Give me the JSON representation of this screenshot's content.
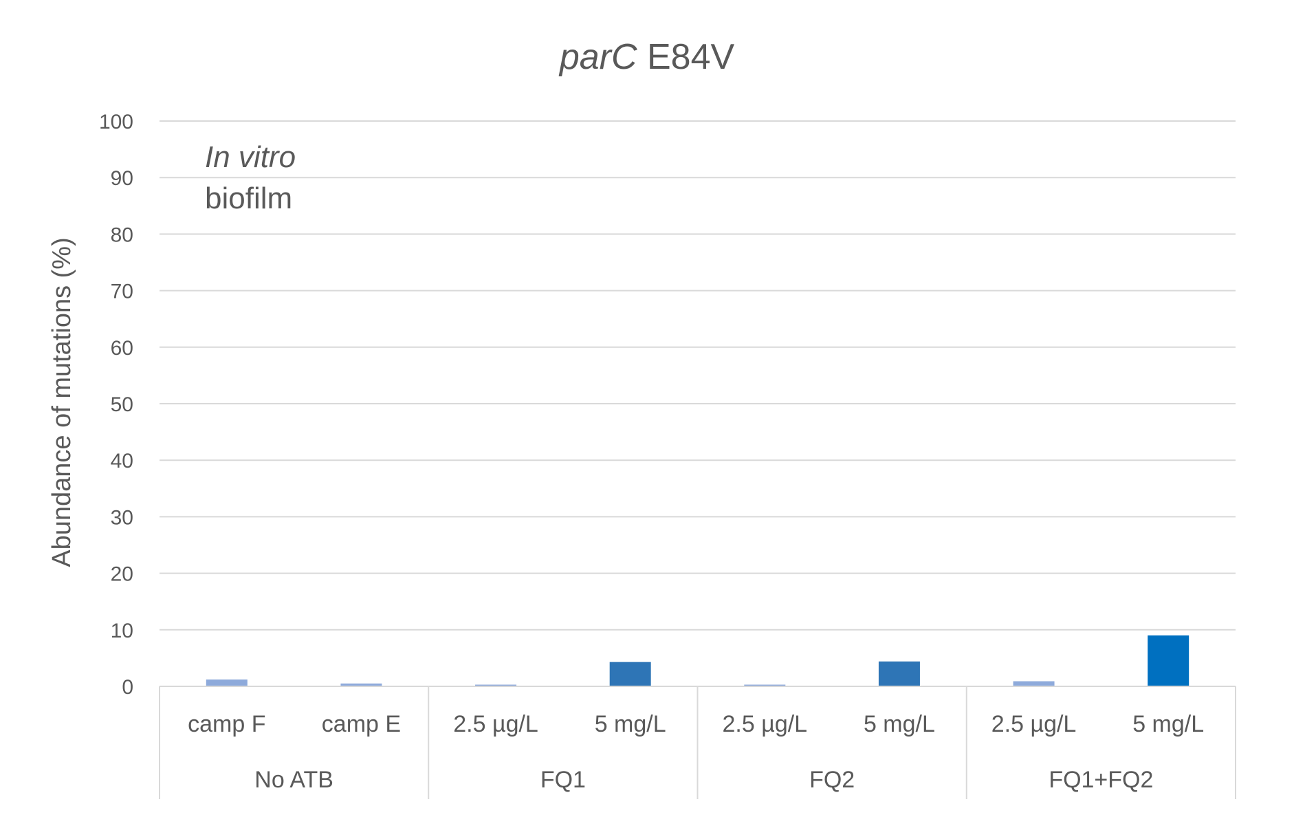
{
  "chart_data": {
    "type": "bar",
    "title_part1": "parC",
    "title_part2": " E84V",
    "ylabel": "Abundance of mutations (%)",
    "xlabel": "",
    "ylim": [
      0,
      100
    ],
    "yticks": [
      "0",
      "10",
      "20",
      "30",
      "40",
      "50",
      "60",
      "70",
      "80",
      "90",
      "100"
    ],
    "grid": true,
    "annotation_line1": "In vitro",
    "annotation_line2": "biofilm",
    "categories": [
      "camp F",
      "camp E",
      "2.5 µg/L",
      "5 mg/L",
      "2.5 µg/L",
      "5 mg/L",
      "2.5 µg/L",
      "5 mg/L"
    ],
    "groups": [
      {
        "label": "No ATB",
        "count": 2
      },
      {
        "label": "FQ1",
        "count": 2
      },
      {
        "label": "FQ2",
        "count": 2
      },
      {
        "label": "FQ1+FQ2",
        "count": 2
      }
    ],
    "values": [
      1.2,
      0.5,
      0.3,
      4.3,
      0.3,
      4.4,
      0.9,
      9.0
    ],
    "bar_colors": [
      "#8eaadb",
      "#8eaadb",
      "#8eaadb",
      "#2e75b6",
      "#8eaadb",
      "#2e75b6",
      "#8eaadb",
      "#0070c0"
    ]
  },
  "colors": {
    "gridline": "#d9d9d9",
    "text": "#595959",
    "axis_line": "#d9d9d9"
  }
}
